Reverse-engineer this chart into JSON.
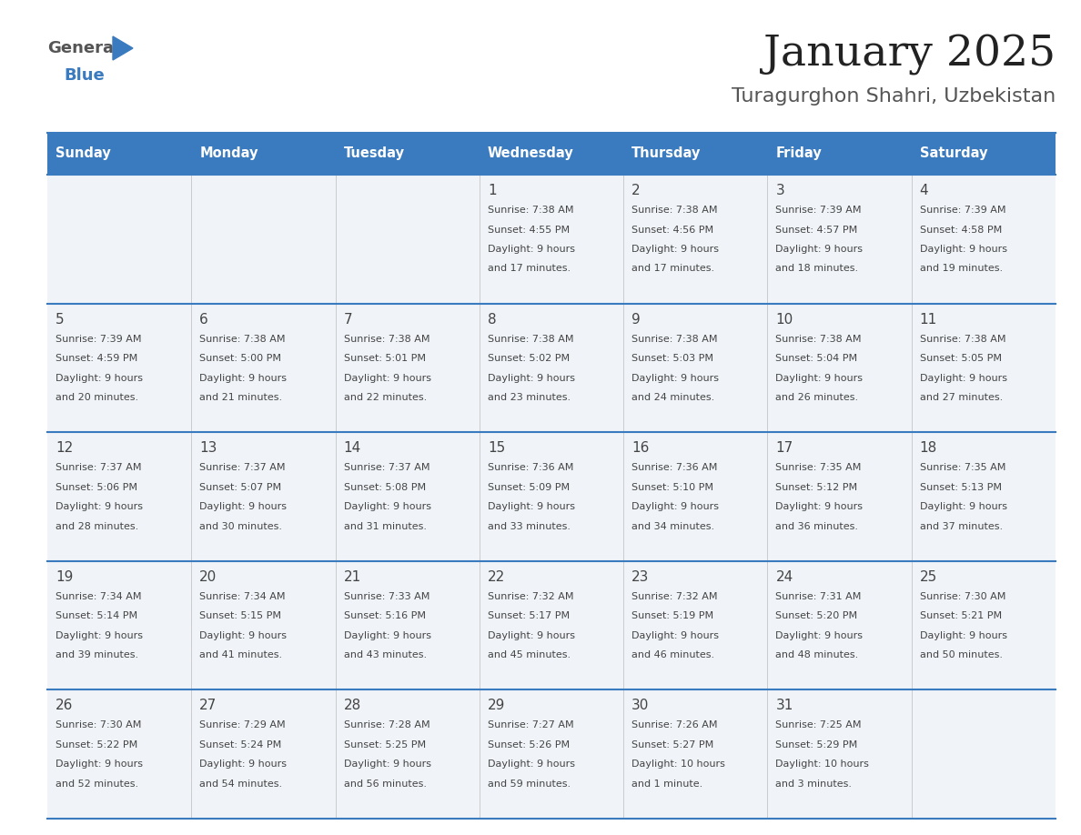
{
  "title": "January 2025",
  "subtitle": "Turagurghon Shahri, Uzbekistan",
  "header_bg": "#3a7bbf",
  "header_text_color": "#ffffff",
  "cell_bg": "#f0f4f8",
  "day_number_color": "#444444",
  "text_color": "#444444",
  "border_color": "#3a7bbf",
  "days_of_week": [
    "Sunday",
    "Monday",
    "Tuesday",
    "Wednesday",
    "Thursday",
    "Friday",
    "Saturday"
  ],
  "weeks": [
    [
      {
        "day": "",
        "sunrise": "",
        "sunset": "",
        "daylight": ""
      },
      {
        "day": "",
        "sunrise": "",
        "sunset": "",
        "daylight": ""
      },
      {
        "day": "",
        "sunrise": "",
        "sunset": "",
        "daylight": ""
      },
      {
        "day": "1",
        "sunrise": "7:38 AM",
        "sunset": "4:55 PM",
        "daylight_h": "9 hours",
        "daylight_m": "and 17 minutes."
      },
      {
        "day": "2",
        "sunrise": "7:38 AM",
        "sunset": "4:56 PM",
        "daylight_h": "9 hours",
        "daylight_m": "and 17 minutes."
      },
      {
        "day": "3",
        "sunrise": "7:39 AM",
        "sunset": "4:57 PM",
        "daylight_h": "9 hours",
        "daylight_m": "and 18 minutes."
      },
      {
        "day": "4",
        "sunrise": "7:39 AM",
        "sunset": "4:58 PM",
        "daylight_h": "9 hours",
        "daylight_m": "and 19 minutes."
      }
    ],
    [
      {
        "day": "5",
        "sunrise": "7:39 AM",
        "sunset": "4:59 PM",
        "daylight_h": "9 hours",
        "daylight_m": "and 20 minutes."
      },
      {
        "day": "6",
        "sunrise": "7:38 AM",
        "sunset": "5:00 PM",
        "daylight_h": "9 hours",
        "daylight_m": "and 21 minutes."
      },
      {
        "day": "7",
        "sunrise": "7:38 AM",
        "sunset": "5:01 PM",
        "daylight_h": "9 hours",
        "daylight_m": "and 22 minutes."
      },
      {
        "day": "8",
        "sunrise": "7:38 AM",
        "sunset": "5:02 PM",
        "daylight_h": "9 hours",
        "daylight_m": "and 23 minutes."
      },
      {
        "day": "9",
        "sunrise": "7:38 AM",
        "sunset": "5:03 PM",
        "daylight_h": "9 hours",
        "daylight_m": "and 24 minutes."
      },
      {
        "day": "10",
        "sunrise": "7:38 AM",
        "sunset": "5:04 PM",
        "daylight_h": "9 hours",
        "daylight_m": "and 26 minutes."
      },
      {
        "day": "11",
        "sunrise": "7:38 AM",
        "sunset": "5:05 PM",
        "daylight_h": "9 hours",
        "daylight_m": "and 27 minutes."
      }
    ],
    [
      {
        "day": "12",
        "sunrise": "7:37 AM",
        "sunset": "5:06 PM",
        "daylight_h": "9 hours",
        "daylight_m": "and 28 minutes."
      },
      {
        "day": "13",
        "sunrise": "7:37 AM",
        "sunset": "5:07 PM",
        "daylight_h": "9 hours",
        "daylight_m": "and 30 minutes."
      },
      {
        "day": "14",
        "sunrise": "7:37 AM",
        "sunset": "5:08 PM",
        "daylight_h": "9 hours",
        "daylight_m": "and 31 minutes."
      },
      {
        "day": "15",
        "sunrise": "7:36 AM",
        "sunset": "5:09 PM",
        "daylight_h": "9 hours",
        "daylight_m": "and 33 minutes."
      },
      {
        "day": "16",
        "sunrise": "7:36 AM",
        "sunset": "5:10 PM",
        "daylight_h": "9 hours",
        "daylight_m": "and 34 minutes."
      },
      {
        "day": "17",
        "sunrise": "7:35 AM",
        "sunset": "5:12 PM",
        "daylight_h": "9 hours",
        "daylight_m": "and 36 minutes."
      },
      {
        "day": "18",
        "sunrise": "7:35 AM",
        "sunset": "5:13 PM",
        "daylight_h": "9 hours",
        "daylight_m": "and 37 minutes."
      }
    ],
    [
      {
        "day": "19",
        "sunrise": "7:34 AM",
        "sunset": "5:14 PM",
        "daylight_h": "9 hours",
        "daylight_m": "and 39 minutes."
      },
      {
        "day": "20",
        "sunrise": "7:34 AM",
        "sunset": "5:15 PM",
        "daylight_h": "9 hours",
        "daylight_m": "and 41 minutes."
      },
      {
        "day": "21",
        "sunrise": "7:33 AM",
        "sunset": "5:16 PM",
        "daylight_h": "9 hours",
        "daylight_m": "and 43 minutes."
      },
      {
        "day": "22",
        "sunrise": "7:32 AM",
        "sunset": "5:17 PM",
        "daylight_h": "9 hours",
        "daylight_m": "and 45 minutes."
      },
      {
        "day": "23",
        "sunrise": "7:32 AM",
        "sunset": "5:19 PM",
        "daylight_h": "9 hours",
        "daylight_m": "and 46 minutes."
      },
      {
        "day": "24",
        "sunrise": "7:31 AM",
        "sunset": "5:20 PM",
        "daylight_h": "9 hours",
        "daylight_m": "and 48 minutes."
      },
      {
        "day": "25",
        "sunrise": "7:30 AM",
        "sunset": "5:21 PM",
        "daylight_h": "9 hours",
        "daylight_m": "and 50 minutes."
      }
    ],
    [
      {
        "day": "26",
        "sunrise": "7:30 AM",
        "sunset": "5:22 PM",
        "daylight_h": "9 hours",
        "daylight_m": "and 52 minutes."
      },
      {
        "day": "27",
        "sunrise": "7:29 AM",
        "sunset": "5:24 PM",
        "daylight_h": "9 hours",
        "daylight_m": "and 54 minutes."
      },
      {
        "day": "28",
        "sunrise": "7:28 AM",
        "sunset": "5:25 PM",
        "daylight_h": "9 hours",
        "daylight_m": "and 56 minutes."
      },
      {
        "day": "29",
        "sunrise": "7:27 AM",
        "sunset": "5:26 PM",
        "daylight_h": "9 hours",
        "daylight_m": "and 59 minutes."
      },
      {
        "day": "30",
        "sunrise": "7:26 AM",
        "sunset": "5:27 PM",
        "daylight_h": "10 hours",
        "daylight_m": "and 1 minute."
      },
      {
        "day": "31",
        "sunrise": "7:25 AM",
        "sunset": "5:29 PM",
        "daylight_h": "10 hours",
        "daylight_m": "and 3 minutes."
      },
      {
        "day": "",
        "sunrise": "",
        "sunset": "",
        "daylight_h": "",
        "daylight_m": ""
      }
    ]
  ],
  "logo_general_color": "#555555",
  "logo_blue_color": "#3a7bbf",
  "logo_triangle_color": "#3a7bbf",
  "title_color": "#222222",
  "subtitle_color": "#555555"
}
